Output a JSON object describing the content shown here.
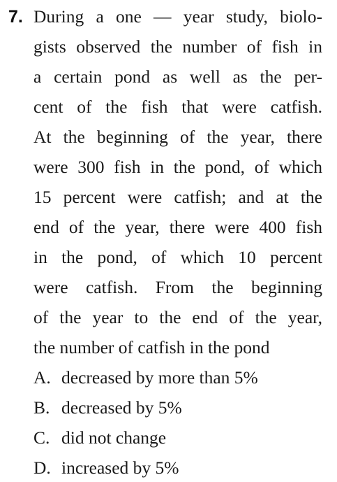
{
  "question": {
    "number": "7.",
    "stem_lines": [
      "During a one — year study, biolo-",
      "gists observed the number of fish in",
      "a certain pond as well as the per-",
      "cent of the fish that were catfish.",
      "At the beginning of the year, there",
      "were 300 fish in the pond, of which",
      "15 percent were catfish; and at the",
      "end of the year, there were 400 fish",
      "in the pond, of which 10 percent",
      "were catfish. From the beginning",
      "of the year to the end of the year,",
      "the number of catfish in the pond"
    ],
    "choices": [
      {
        "letter": "A.",
        "text": "decreased by more than 5%"
      },
      {
        "letter": "B.",
        "text": "decreased by 5%"
      },
      {
        "letter": "C.",
        "text": "did not change"
      },
      {
        "letter": "D.",
        "text": "increased by 5%"
      }
    ]
  }
}
